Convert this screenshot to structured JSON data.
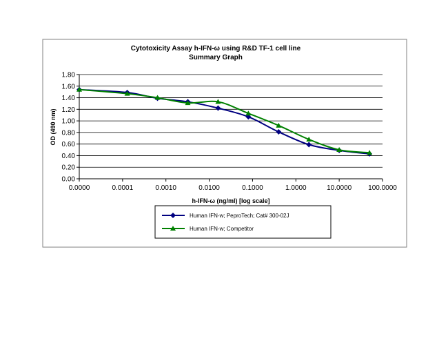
{
  "chart_data": {
    "type": "line",
    "title": "Cytotoxicity Assay h-IFN-ω using R&D TF-1 cell line",
    "subtitle": "Summary Graph",
    "xlabel": "h-IFN-ω (ng/ml) [log scale]",
    "ylabel": "OD (490 nm)",
    "xscale": "log",
    "grid": true,
    "legend": "bottom",
    "x": [
      1e-05,
      0.000128,
      0.00064,
      0.0032,
      0.016,
      0.08,
      0.4,
      2,
      10,
      50
    ],
    "series": [
      {
        "name": "Human IFN-w; PeproTech; Cat# 300-02J",
        "color": "#000080",
        "marker": "diamond",
        "values": [
          1.54,
          1.49,
          1.39,
          1.33,
          1.22,
          1.07,
          0.81,
          0.59,
          0.49,
          0.43
        ]
      },
      {
        "name": "Human IFN-w; Competitor",
        "color": "#008000",
        "marker": "triangle",
        "values": [
          1.54,
          1.47,
          1.4,
          1.31,
          1.33,
          1.13,
          0.92,
          0.68,
          0.5,
          0.45
        ]
      }
    ],
    "xlim": [
      1e-05,
      100
    ],
    "xticks": [
      {
        "value": 1e-05,
        "label": "0.0000"
      },
      {
        "value": 0.0001,
        "label": "0.0001"
      },
      {
        "value": 0.001,
        "label": "0.0010"
      },
      {
        "value": 0.01,
        "label": "0.0100"
      },
      {
        "value": 0.1,
        "label": "0.1000"
      },
      {
        "value": 1,
        "label": "1.0000"
      },
      {
        "value": 10,
        "label": "10.0000"
      },
      {
        "value": 100,
        "label": "100.0000"
      }
    ],
    "ylim": [
      0,
      1.8
    ],
    "yticks": [
      {
        "value": 0,
        "label": "0.00"
      },
      {
        "value": 0.2,
        "label": "0.20"
      },
      {
        "value": 0.4,
        "label": "0.40"
      },
      {
        "value": 0.6,
        "label": "0.60"
      },
      {
        "value": 0.8,
        "label": "0.80"
      },
      {
        "value": 1.0,
        "label": "1.00"
      },
      {
        "value": 1.2,
        "label": "1.20"
      },
      {
        "value": 1.4,
        "label": "1.40"
      },
      {
        "value": 1.6,
        "label": "1.60"
      },
      {
        "value": 1.8,
        "label": "1.80"
      }
    ]
  }
}
